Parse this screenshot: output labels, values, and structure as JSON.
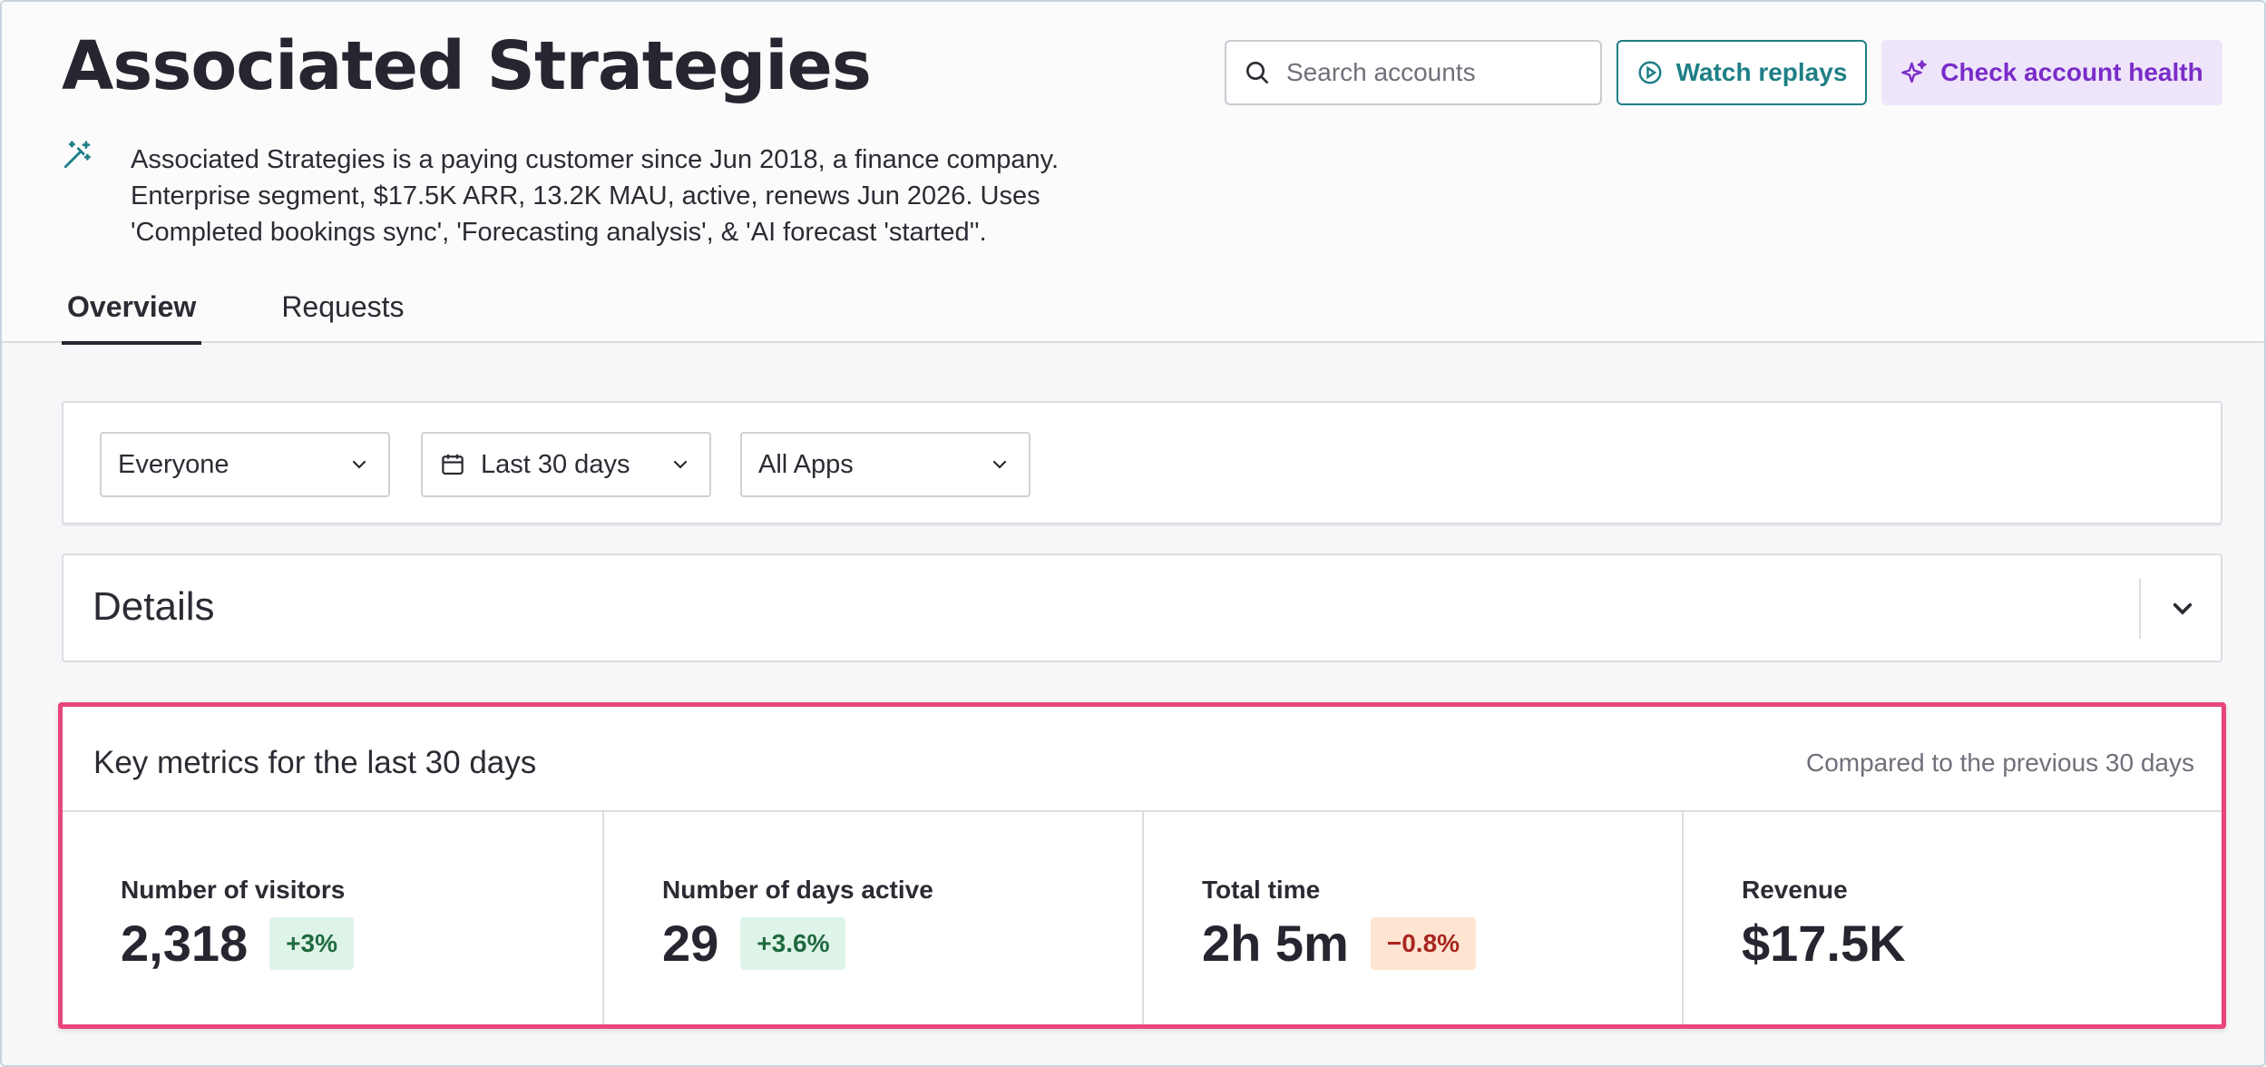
{
  "header": {
    "title": "Associated Strategies",
    "summary": "Associated Strategies is a paying customer since Jun 2018, a finance company. Enterprise segment, $17.5K ARR, 13.2K MAU, active, renews Jun 2026. Uses 'Completed bookings sync', 'Forecasting analysis', & 'AI forecast 'started''.",
    "summary_icon": "magic-wand-icon"
  },
  "search": {
    "placeholder": "Search accounts",
    "value": ""
  },
  "actions": {
    "watch_replays": "Watch replays",
    "check_health": "Check account health"
  },
  "tabs": [
    {
      "label": "Overview",
      "active": true
    },
    {
      "label": "Requests",
      "active": false
    }
  ],
  "filters": {
    "segment": "Everyone",
    "date_range": "Last 30 days",
    "apps": "All Apps"
  },
  "details": {
    "title": "Details"
  },
  "metrics": {
    "title": "Key metrics for the last 30 days",
    "compare": "Compared to the previous 30 days",
    "items": [
      {
        "label": "Number of visitors",
        "value": "2,318",
        "change": "+3%",
        "trend": "up"
      },
      {
        "label": "Number of days active",
        "value": "29",
        "change": "+3.6%",
        "trend": "up"
      },
      {
        "label": "Total time",
        "value": "2h 5m",
        "change": "−0.8%",
        "trend": "down"
      },
      {
        "label": "Revenue",
        "value": "$17.5K",
        "change": "",
        "trend": ""
      }
    ]
  },
  "colors": {
    "accent_teal": "#1e7f86",
    "accent_purple": "#7a2cc8",
    "highlight_pink": "#e8457e",
    "positive_bg": "#dff4e8",
    "negative_bg": "#fde5d2"
  }
}
